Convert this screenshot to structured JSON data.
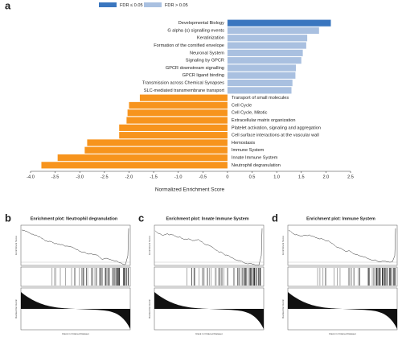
{
  "chart_data": {
    "type": "bar",
    "orientation": "horizontal",
    "panel_label": "a",
    "legend": [
      {
        "name": "FDR ≤ 0.05",
        "color": "#3a76bf"
      },
      {
        "name": "FDR > 0.05",
        "color": "#a9c0e0"
      }
    ],
    "categories": [
      "Developmental Biology",
      "G alpha (s) signalling events",
      "Keratinization",
      "Formation of the cornified envelope",
      "Neuronal System",
      "Signaling by GPCR",
      "GPCR downstream signalling",
      "GPCR ligand binding",
      "Transmission across Chemical Synapses",
      "SLC-mediated transmembrane transport",
      "Transport of small molecules",
      "Cell Cycle",
      "Cell Cycle, Mitotic",
      "Extracellular matrix organization",
      "Platelet activation, signaling and aggregation",
      "Cell surface interactions at the vascular wall",
      "Hemostasis",
      "Immune System",
      "Innate Immune System",
      "Neutrophil degranulation"
    ],
    "values": [
      2.1,
      1.86,
      1.62,
      1.6,
      1.53,
      1.5,
      1.39,
      1.38,
      1.32,
      1.3,
      -1.78,
      -2.0,
      -2.03,
      -2.05,
      -2.2,
      -2.2,
      -2.85,
      -2.9,
      -3.45,
      -3.78
    ],
    "colors": [
      "#3a76bf",
      "#a9c0e0",
      "#a9c0e0",
      "#a9c0e0",
      "#a9c0e0",
      "#a9c0e0",
      "#a9c0e0",
      "#a9c0e0",
      "#a9c0e0",
      "#a9c0e0",
      "#f7941d",
      "#f7941d",
      "#f7941d",
      "#f7941d",
      "#f7941d",
      "#f7941d",
      "#f7941d",
      "#f7941d",
      "#f7941d",
      "#f7941d"
    ],
    "xlim": [
      -4.0,
      2.5
    ],
    "xticks": [
      {
        "value": -4,
        "label": "-4.0"
      },
      -3.5,
      {
        "value": -3,
        "label": "-3.0"
      },
      -2.5,
      {
        "value": -2,
        "label": "-2.0"
      },
      -1.5,
      {
        "value": -1,
        "label": "-1.0"
      },
      -0.5,
      0,
      0.5,
      {
        "value": 1,
        "label": "1.0"
      },
      1.5,
      {
        "value": 2,
        "label": "2.0"
      },
      2.5
    ],
    "xlabel": "Normalized Enrichment Score"
  },
  "panels": [
    {
      "label": "b",
      "title": "Enrichment plot: Neutrophil degranulation",
      "es_label": "Enrichment Score",
      "metric_label": "Ranked list metric",
      "rank_label": "Rank in Ordered Dataset"
    },
    {
      "label": "c",
      "title": "Enrichment plot: Innate Immune System",
      "es_label": "Enrichment Score",
      "metric_label": "Ranked list metric",
      "rank_label": "Rank in Ordered Dataset"
    },
    {
      "label": "d",
      "title": "Enrichment plot: Immune System",
      "es_label": "Enrichment Score",
      "metric_label": "Ranked list metric",
      "rank_label": "Rank in Ordered Dataset"
    }
  ]
}
